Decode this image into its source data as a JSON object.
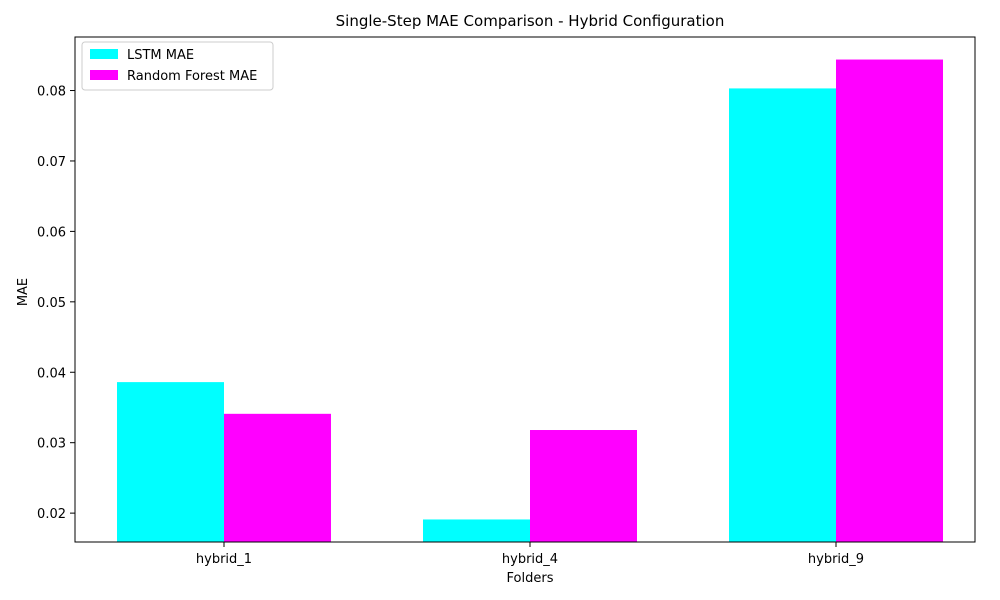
{
  "chart_data": {
    "type": "bar",
    "title": "Single-Step MAE Comparison - Hybrid Configuration",
    "xlabel": "Folders",
    "ylabel": "MAE",
    "categories": [
      "hybrid_1",
      "hybrid_4",
      "hybrid_9"
    ],
    "series": [
      {
        "name": "LSTM MAE",
        "color": "#00ffff",
        "values": [
          0.0386,
          0.0191,
          0.0803
        ]
      },
      {
        "name": "Random Forest MAE",
        "color": "#ff00ff",
        "values": [
          0.0341,
          0.0318,
          0.0844
        ]
      }
    ],
    "ylim": [
      0.0159,
      0.0876
    ],
    "yticks": [
      0.02,
      0.03,
      0.04,
      0.05,
      0.06,
      0.07,
      0.08
    ],
    "ytick_labels": [
      "0.02",
      "0.03",
      "0.04",
      "0.05",
      "0.06",
      "0.07",
      "0.08"
    ],
    "grid": false,
    "legend": {
      "location": "top-left"
    }
  }
}
